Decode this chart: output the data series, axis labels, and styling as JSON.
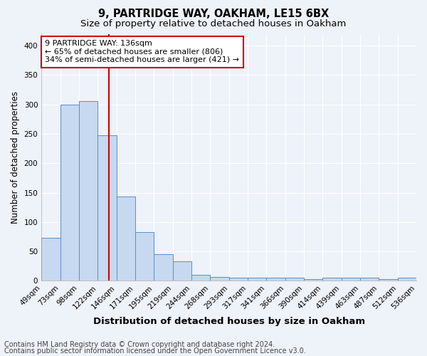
{
  "title1": "9, PARTRIDGE WAY, OAKHAM, LE15 6BX",
  "title2": "Size of property relative to detached houses in Oakham",
  "xlabel": "Distribution of detached houses by size in Oakham",
  "ylabel": "Number of detached properties",
  "bar_values": [
    73,
    300,
    305,
    248,
    143,
    83,
    45,
    33,
    10,
    7,
    5,
    5,
    5,
    5,
    3,
    5,
    5,
    5,
    3,
    5
  ],
  "xtick_labels": [
    "49sqm",
    "73sqm",
    "98sqm",
    "122sqm",
    "146sqm",
    "171sqm",
    "195sqm",
    "219sqm",
    "244sqm",
    "268sqm",
    "293sqm",
    "317sqm",
    "341sqm",
    "366sqm",
    "390sqm",
    "414sqm",
    "439sqm",
    "463sqm",
    "487sqm",
    "512sqm",
    "536sqm"
  ],
  "bar_color": "#c6d9f0",
  "bar_edgecolor": "#5b8fc9",
  "vline_color": "#cc0000",
  "ylim": [
    0,
    420
  ],
  "yticks": [
    0,
    50,
    100,
    150,
    200,
    250,
    300,
    350,
    400
  ],
  "annotation_line1": "9 PARTRIDGE WAY: 136sqm",
  "annotation_line2": "← 65% of detached houses are smaller (806)",
  "annotation_line3": "34% of semi-detached houses are larger (421) →",
  "annotation_box_color": "#ffffff",
  "annotation_box_edgecolor": "#cc0000",
  "footer1": "Contains HM Land Registry data © Crown copyright and database right 2024.",
  "footer2": "Contains public sector information licensed under the Open Government Licence v3.0.",
  "bg_color": "#eef2f9",
  "grid_color": "#ffffff",
  "title1_fontsize": 10.5,
  "title2_fontsize": 9.5,
  "xlabel_fontsize": 9.5,
  "ylabel_fontsize": 8.5,
  "tick_fontsize": 7.5,
  "annotation_fontsize": 8,
  "footer_fontsize": 7
}
